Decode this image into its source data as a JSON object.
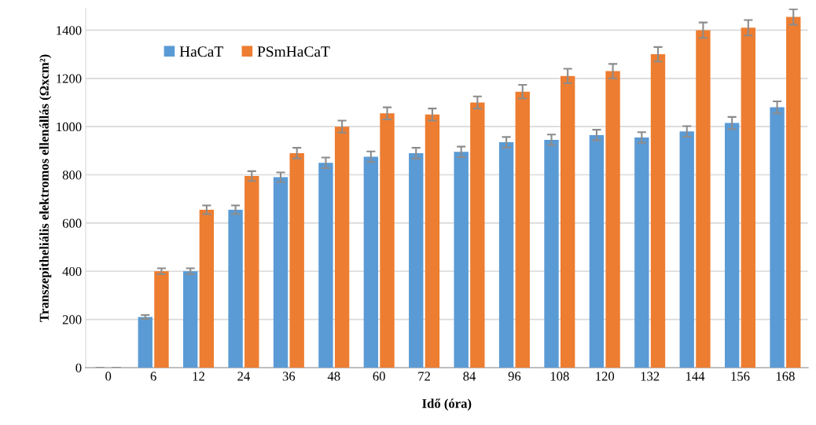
{
  "chart_data": {
    "type": "bar",
    "xlabel": "Idő (óra)",
    "ylabel": "Transzepitheliális elektromos ellenállás (Ωxcm²)",
    "categories": [
      "0",
      "6",
      "12",
      "24",
      "36",
      "48",
      "60",
      "72",
      "84",
      "96",
      "108",
      "120",
      "132",
      "144",
      "156",
      "168"
    ],
    "series": [
      {
        "name": "HaCaT",
        "color": "#5b9bd5",
        "values": [
          0,
          210,
          400,
          655,
          790,
          850,
          875,
          890,
          895,
          935,
          945,
          965,
          955,
          980,
          1015,
          1080
        ],
        "errors": [
          null,
          8,
          12,
          18,
          20,
          22,
          22,
          22,
          22,
          22,
          22,
          22,
          22,
          22,
          25,
          25
        ]
      },
      {
        "name": "PSmHaCaT",
        "color": "#ed7d31",
        "values": [
          0,
          400,
          655,
          795,
          890,
          1000,
          1055,
          1050,
          1100,
          1145,
          1210,
          1230,
          1300,
          1400,
          1410,
          1455
        ],
        "errors": [
          null,
          12,
          18,
          20,
          22,
          25,
          25,
          25,
          25,
          28,
          30,
          30,
          30,
          32,
          32,
          32
        ]
      }
    ],
    "ylim": [
      0,
      1490
    ],
    "yticks": [
      0,
      200,
      400,
      600,
      800,
      1000,
      1200,
      1400
    ],
    "grid": "y",
    "legend": "top left"
  }
}
